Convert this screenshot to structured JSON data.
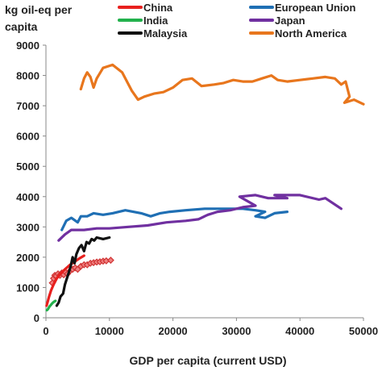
{
  "chart_data": {
    "type": "line",
    "title": "",
    "ylabel": "kg oil-eq per capita",
    "xlabel": "GDP per capita (current USD)",
    "xlim": [
      0,
      50000
    ],
    "ylim": [
      0,
      9000
    ],
    "xticks": [
      "0",
      "10000",
      "20000",
      "30000",
      "40000",
      "50000"
    ],
    "yticks": [
      "0",
      "1000",
      "2000",
      "3000",
      "4000",
      "5000",
      "6000",
      "7000",
      "8000",
      "9000"
    ],
    "grid": false,
    "legend_position": "top",
    "series": [
      {
        "name": "China",
        "color": "#e8201e",
        "points": [
          [
            100,
            400
          ],
          [
            300,
            550
          ],
          [
            500,
            700
          ],
          [
            800,
            900
          ],
          [
            1200,
            1100
          ],
          [
            1700,
            1300
          ],
          [
            2300,
            1450
          ],
          [
            3000,
            1600
          ],
          [
            3800,
            1750
          ],
          [
            4500,
            1850
          ],
          [
            5200,
            1950
          ],
          [
            6000,
            2050
          ]
        ]
      },
      {
        "name": "India",
        "color": "#22b14c",
        "points": [
          [
            150,
            250
          ],
          [
            300,
            280
          ],
          [
            450,
            330
          ],
          [
            600,
            380
          ],
          [
            800,
            430
          ],
          [
            1000,
            480
          ],
          [
            1200,
            520
          ],
          [
            1500,
            560
          ]
        ]
      },
      {
        "name": "Malaysia",
        "color": "#111111",
        "points": [
          [
            1700,
            400
          ],
          [
            2000,
            500
          ],
          [
            2300,
            700
          ],
          [
            2700,
            800
          ],
          [
            3000,
            1100
          ],
          [
            3300,
            1300
          ],
          [
            3600,
            1500
          ],
          [
            3900,
            1700
          ],
          [
            4200,
            2000
          ],
          [
            4500,
            1800
          ],
          [
            4800,
            2100
          ],
          [
            5200,
            2300
          ],
          [
            5600,
            2400
          ],
          [
            6000,
            2200
          ],
          [
            6400,
            2500
          ],
          [
            6800,
            2450
          ],
          [
            7200,
            2600
          ],
          [
            7600,
            2550
          ],
          [
            8000,
            2650
          ],
          [
            9000,
            2600
          ],
          [
            10000,
            2650
          ]
        ]
      },
      {
        "name": "European Union",
        "color": "#1f6fb4",
        "points": [
          [
            2500,
            2900
          ],
          [
            3200,
            3200
          ],
          [
            4000,
            3300
          ],
          [
            5000,
            3150
          ],
          [
            5500,
            3350
          ],
          [
            6500,
            3350
          ],
          [
            7500,
            3450
          ],
          [
            9000,
            3400
          ],
          [
            10500,
            3450
          ],
          [
            12500,
            3550
          ],
          [
            15000,
            3450
          ],
          [
            16500,
            3350
          ],
          [
            18000,
            3450
          ],
          [
            19500,
            3500
          ],
          [
            22000,
            3550
          ],
          [
            25000,
            3600
          ],
          [
            28000,
            3600
          ],
          [
            31000,
            3600
          ],
          [
            33000,
            3550
          ],
          [
            34500,
            3500
          ],
          [
            33000,
            3350
          ],
          [
            34500,
            3300
          ],
          [
            36000,
            3450
          ],
          [
            38000,
            3500
          ]
        ]
      },
      {
        "name": "Japan",
        "color": "#7030a0",
        "points": [
          [
            2000,
            2550
          ],
          [
            3000,
            2750
          ],
          [
            4000,
            2900
          ],
          [
            6000,
            2900
          ],
          [
            8000,
            2950
          ],
          [
            10000,
            2950
          ],
          [
            13000,
            3000
          ],
          [
            16000,
            3050
          ],
          [
            19000,
            3150
          ],
          [
            22000,
            3200
          ],
          [
            24000,
            3250
          ],
          [
            25500,
            3400
          ],
          [
            27000,
            3500
          ],
          [
            29000,
            3550
          ],
          [
            31000,
            3650
          ],
          [
            33000,
            3700
          ],
          [
            30500,
            4000
          ],
          [
            33000,
            4050
          ],
          [
            35000,
            3950
          ],
          [
            38000,
            3950
          ],
          [
            36000,
            4050
          ],
          [
            40000,
            4050
          ],
          [
            43000,
            3900
          ],
          [
            44000,
            3950
          ],
          [
            46500,
            3600
          ]
        ]
      },
      {
        "name": "North America",
        "color": "#e8761d",
        "points": [
          [
            5500,
            7550
          ],
          [
            6000,
            7900
          ],
          [
            6500,
            8100
          ],
          [
            7000,
            7950
          ],
          [
            7500,
            7600
          ],
          [
            8000,
            7900
          ],
          [
            9000,
            8250
          ],
          [
            10500,
            8350
          ],
          [
            12000,
            8100
          ],
          [
            13500,
            7500
          ],
          [
            14500,
            7200
          ],
          [
            15500,
            7300
          ],
          [
            17000,
            7400
          ],
          [
            18500,
            7450
          ],
          [
            20000,
            7600
          ],
          [
            21500,
            7850
          ],
          [
            23000,
            7900
          ],
          [
            24500,
            7650
          ],
          [
            26500,
            7700
          ],
          [
            28000,
            7750
          ],
          [
            29500,
            7850
          ],
          [
            31000,
            7800
          ],
          [
            32500,
            7800
          ],
          [
            34000,
            7900
          ],
          [
            35500,
            8000
          ],
          [
            36500,
            7850
          ],
          [
            38000,
            7800
          ],
          [
            40000,
            7850
          ],
          [
            42000,
            7900
          ],
          [
            44000,
            7950
          ],
          [
            45500,
            7900
          ],
          [
            46500,
            7700
          ],
          [
            47200,
            7800
          ],
          [
            47800,
            7300
          ],
          [
            47000,
            7100
          ],
          [
            48500,
            7200
          ],
          [
            50000,
            7050
          ]
        ]
      }
    ],
    "marker_series": [
      {
        "label": "India",
        "color": "#d03232",
        "fill": "#f08080",
        "points": [
          [
            1000,
            1150
          ],
          [
            1200,
            1300
          ],
          [
            1400,
            1400
          ],
          [
            1600,
            1380
          ],
          [
            1900,
            1450
          ],
          [
            2200,
            1400
          ],
          [
            2500,
            1480
          ],
          [
            2800,
            1420
          ],
          [
            3100,
            1500
          ],
          [
            3400,
            1450
          ],
          [
            3800,
            1550
          ],
          [
            4200,
            1600
          ],
          [
            4600,
            1650
          ],
          [
            5000,
            1600
          ],
          [
            5500,
            1700
          ],
          [
            6000,
            1750
          ],
          [
            6500,
            1750
          ],
          [
            7000,
            1800
          ],
          [
            7500,
            1820
          ],
          [
            8000,
            1840
          ],
          [
            8500,
            1850
          ],
          [
            9000,
            1870
          ],
          [
            9500,
            1880
          ],
          [
            10200,
            1900
          ]
        ]
      }
    ]
  }
}
